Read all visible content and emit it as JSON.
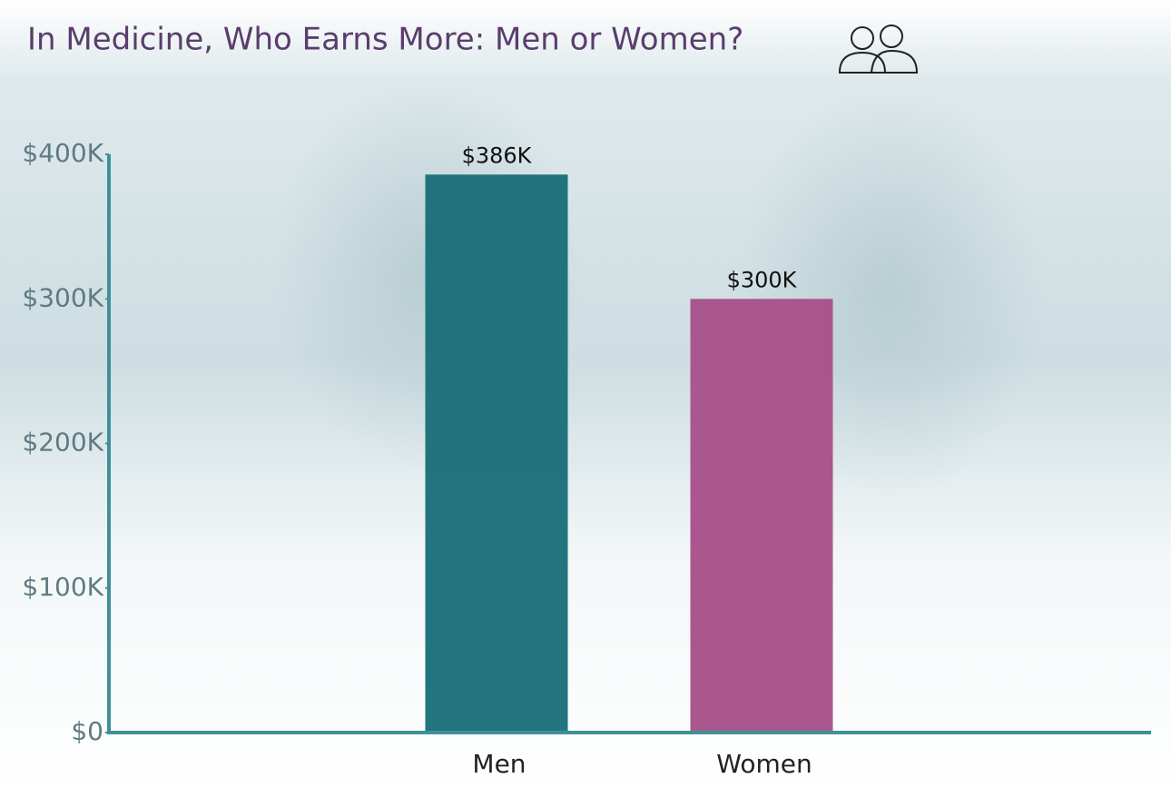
{
  "chart_data": {
    "type": "bar",
    "title": "In Medicine, Who Earns More: Men or Women?",
    "categories": [
      "Men",
      "Women"
    ],
    "values": [
      386000,
      300000
    ],
    "value_labels": [
      "$386K",
      "$300K"
    ],
    "colors": [
      "#1b6f7a",
      "#a8528b"
    ],
    "ylim": [
      0,
      400000
    ],
    "yticks": [
      {
        "value": 0,
        "label": "$0"
      },
      {
        "value": 100000,
        "label": "$100K"
      },
      {
        "value": 200000,
        "label": "$200K"
      },
      {
        "value": 300000,
        "label": "$300K"
      },
      {
        "value": 400000,
        "label": "$400K"
      }
    ]
  }
}
